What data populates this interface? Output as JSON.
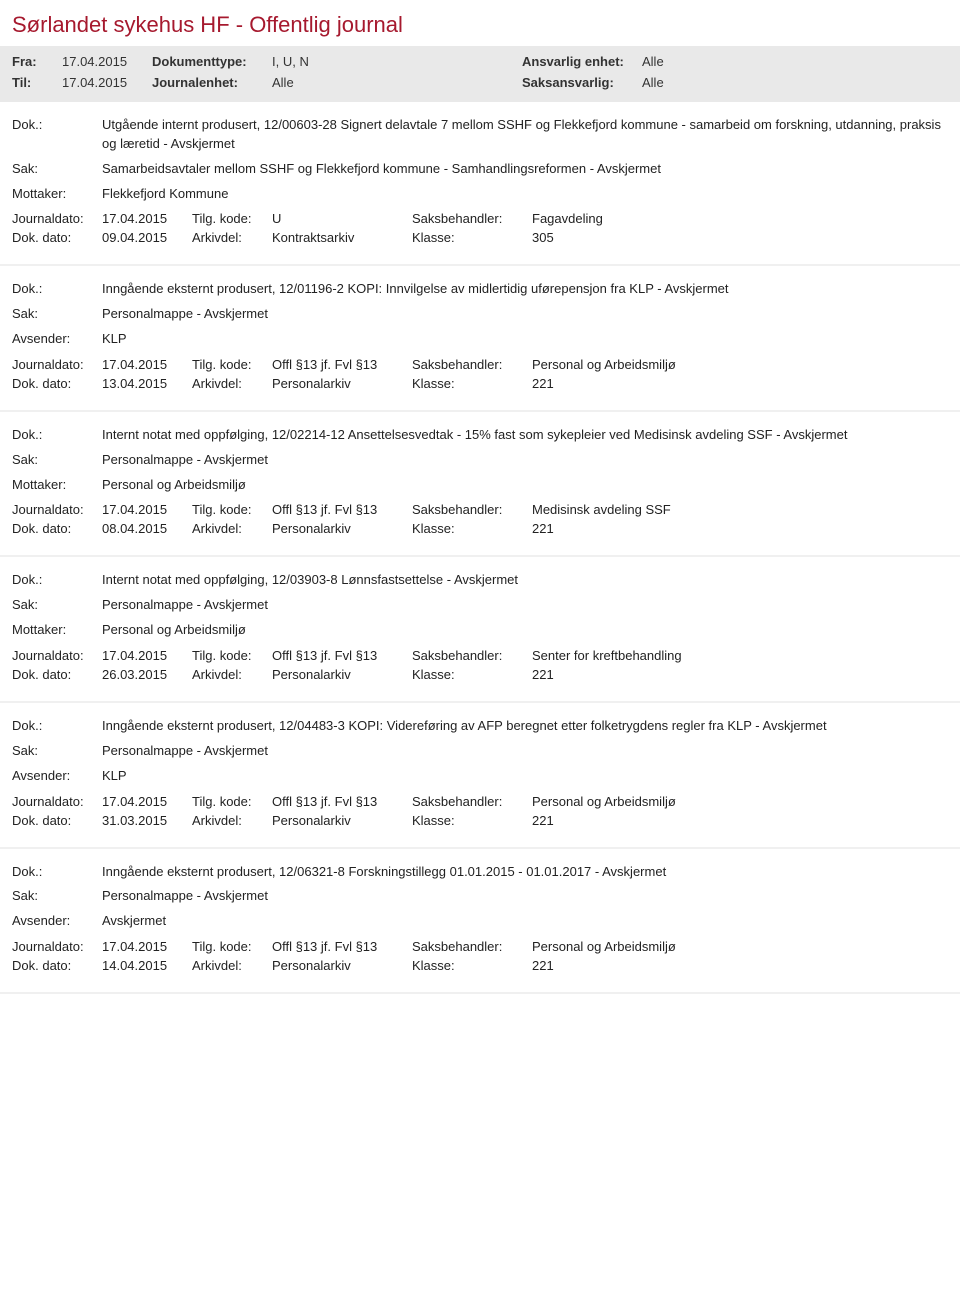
{
  "page_title": "Sørlandet sykehus HF - Offentlig journal",
  "header": {
    "labels": {
      "fra": "Fra:",
      "til": "Til:",
      "dokumenttype": "Dokumenttype:",
      "journalenhet": "Journalenhet:",
      "ansvarlig_enhet": "Ansvarlig enhet:",
      "saksansvarlig": "Saksansvarlig:"
    },
    "values": {
      "fra": "17.04.2015",
      "til": "17.04.2015",
      "dokumenttype": "I, U, N",
      "journalenhet": "Alle",
      "ansvarlig_enhet": "Alle",
      "saksansvarlig": "Alle"
    }
  },
  "field_labels": {
    "dok": "Dok.:",
    "sak": "Sak:",
    "mottaker": "Mottaker:",
    "avsender": "Avsender:",
    "journaldato": "Journaldato:",
    "dokdato": "Dok. dato:",
    "tilgkode": "Tilg. kode:",
    "arkivdel": "Arkivdel:",
    "saksbehandler": "Saksbehandler:",
    "klasse": "Klasse:"
  },
  "entries": [
    {
      "dok": "Utgående internt produsert, 12/00603-28 Signert delavtale 7 mellom SSHF og Flekkefjord kommune - samarbeid om forskning, utdanning, praksis og læretid - Avskjermet",
      "sak": "Samarbeidsavtaler mellom SSHF og Flekkefjord kommune - Samhandlingsreformen - Avskjermet",
      "party_label": "Mottaker:",
      "party_value": "Flekkefjord Kommune",
      "journaldato": "17.04.2015",
      "tilgkode": "U",
      "saksbehandler": "Fagavdeling",
      "dokdato": "09.04.2015",
      "arkivdel": "Kontraktsarkiv",
      "klasse": "305"
    },
    {
      "dok": "Inngående eksternt produsert, 12/01196-2 KOPI: Innvilgelse av midlertidig uførepensjon fra KLP - Avskjermet",
      "sak": "Personalmappe - Avskjermet",
      "party_label": "Avsender:",
      "party_value": "KLP",
      "journaldato": "17.04.2015",
      "tilgkode": "Offl §13 jf. Fvl §13",
      "saksbehandler": "Personal og Arbeidsmiljø",
      "dokdato": "13.04.2015",
      "arkivdel": "Personalarkiv",
      "klasse": "221"
    },
    {
      "dok": "Internt notat med oppfølging, 12/02214-12 Ansettelsesvedtak - 15% fast som sykepleier ved Medisinsk avdeling SSF - Avskjermet",
      "sak": "Personalmappe - Avskjermet",
      "party_label": "Mottaker:",
      "party_value": "Personal og Arbeidsmiljø",
      "journaldato": "17.04.2015",
      "tilgkode": "Offl §13 jf. Fvl §13",
      "saksbehandler": "Medisinsk avdeling SSF",
      "dokdato": "08.04.2015",
      "arkivdel": "Personalarkiv",
      "klasse": "221"
    },
    {
      "dok": "Internt notat med oppfølging, 12/03903-8 Lønnsfastsettelse - Avskjermet",
      "sak": "Personalmappe - Avskjermet",
      "party_label": "Mottaker:",
      "party_value": "Personal og Arbeidsmiljø",
      "journaldato": "17.04.2015",
      "tilgkode": "Offl §13 jf. Fvl §13",
      "saksbehandler": "Senter for kreftbehandling",
      "dokdato": "26.03.2015",
      "arkivdel": "Personalarkiv",
      "klasse": "221"
    },
    {
      "dok": "Inngående eksternt produsert, 12/04483-3 KOPI: Videreføring av AFP beregnet etter folketrygdens regler fra KLP - Avskjermet",
      "sak": "Personalmappe - Avskjermet",
      "party_label": "Avsender:",
      "party_value": "KLP",
      "journaldato": "17.04.2015",
      "tilgkode": "Offl §13 jf. Fvl §13",
      "saksbehandler": "Personal og Arbeidsmiljø",
      "dokdato": "31.03.2015",
      "arkivdel": "Personalarkiv",
      "klasse": "221"
    },
    {
      "dok": "Inngående eksternt produsert, 12/06321-8 Forskningstillegg 01.01.2015 - 01.01.2017 - Avskjermet",
      "sak": "Personalmappe - Avskjermet",
      "party_label": "Avsender:",
      "party_value": "Avskjermet",
      "journaldato": "17.04.2015",
      "tilgkode": "Offl §13 jf. Fvl §13",
      "saksbehandler": "Personal og Arbeidsmiljø",
      "dokdato": "14.04.2015",
      "arkivdel": "Personalarkiv",
      "klasse": "221"
    }
  ],
  "colors": {
    "title": "#a6192e",
    "header_bg": "#e9e9e9",
    "text": "#333333"
  }
}
